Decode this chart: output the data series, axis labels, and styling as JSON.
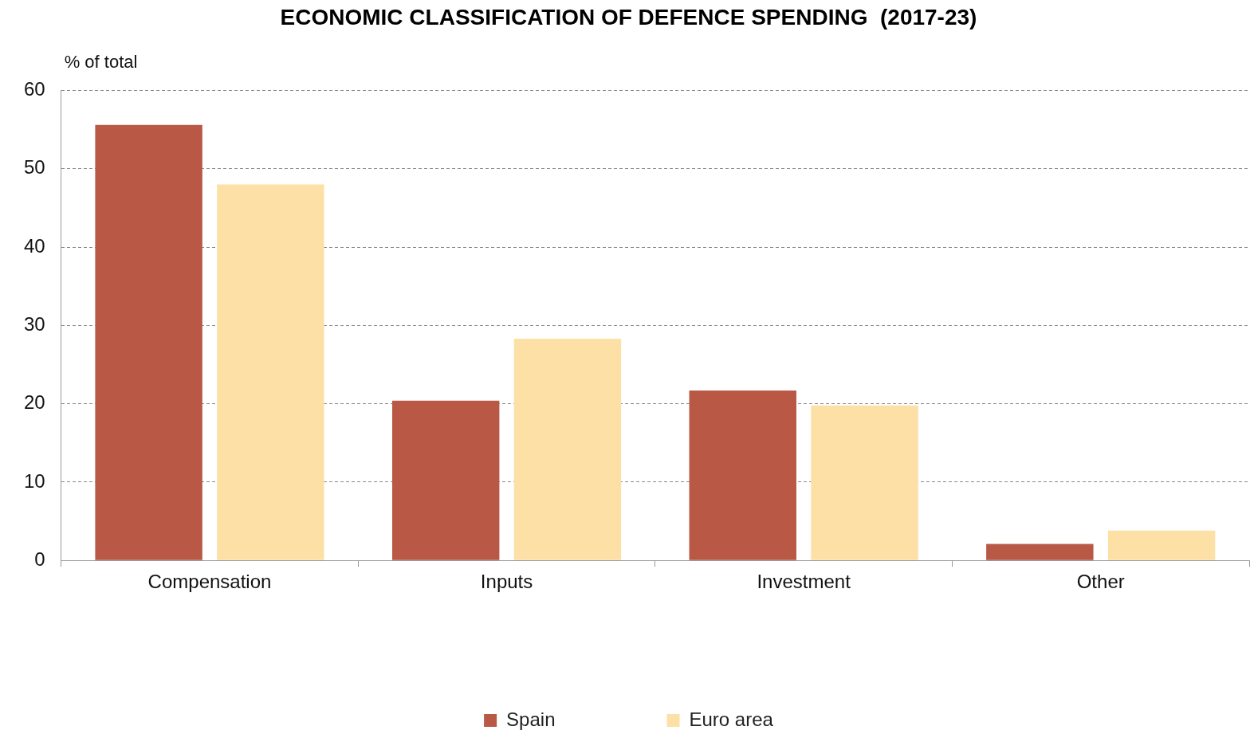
{
  "chart_data": {
    "type": "bar",
    "title": "ECONOMIC CLASSIFICATION OF DEFENCE SPENDING  (2017-23)",
    "ylabel": "% of total",
    "categories": [
      "Compensation",
      "Inputs",
      "Investment",
      "Other"
    ],
    "series": [
      {
        "name": "Spain",
        "color": "#b85845",
        "values": [
          55.6,
          20.4,
          21.7,
          2.1
        ]
      },
      {
        "name": "Euro area",
        "color": "#fde0a6",
        "values": [
          48.0,
          28.3,
          19.8,
          3.8
        ]
      }
    ],
    "ylim": [
      0,
      60
    ],
    "yticks": [
      0,
      10,
      20,
      30,
      40,
      50,
      60
    ],
    "grid": "y",
    "legend": "bottom"
  }
}
